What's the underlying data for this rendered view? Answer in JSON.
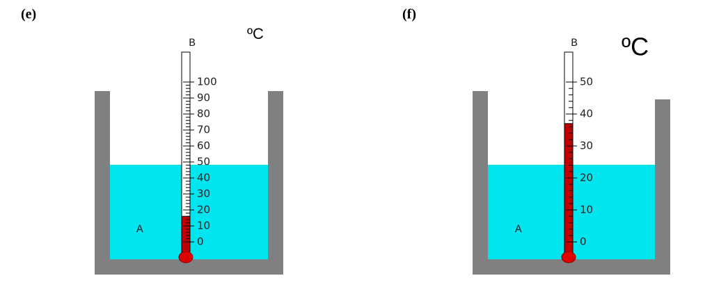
{
  "panels": [
    {
      "label": "(e)",
      "liquid_label": "A",
      "thermometer_label": "B",
      "unit": "ºC",
      "scale": [
        0,
        10,
        20,
        30,
        40,
        50,
        60,
        70,
        80,
        90,
        100
      ],
      "reading": 16
    },
    {
      "label": "(f)",
      "liquid_label": "A",
      "thermometer_label": "B",
      "unit": "ºC",
      "scale": [
        0,
        10,
        20,
        30,
        40,
        50
      ],
      "reading": 37
    }
  ]
}
